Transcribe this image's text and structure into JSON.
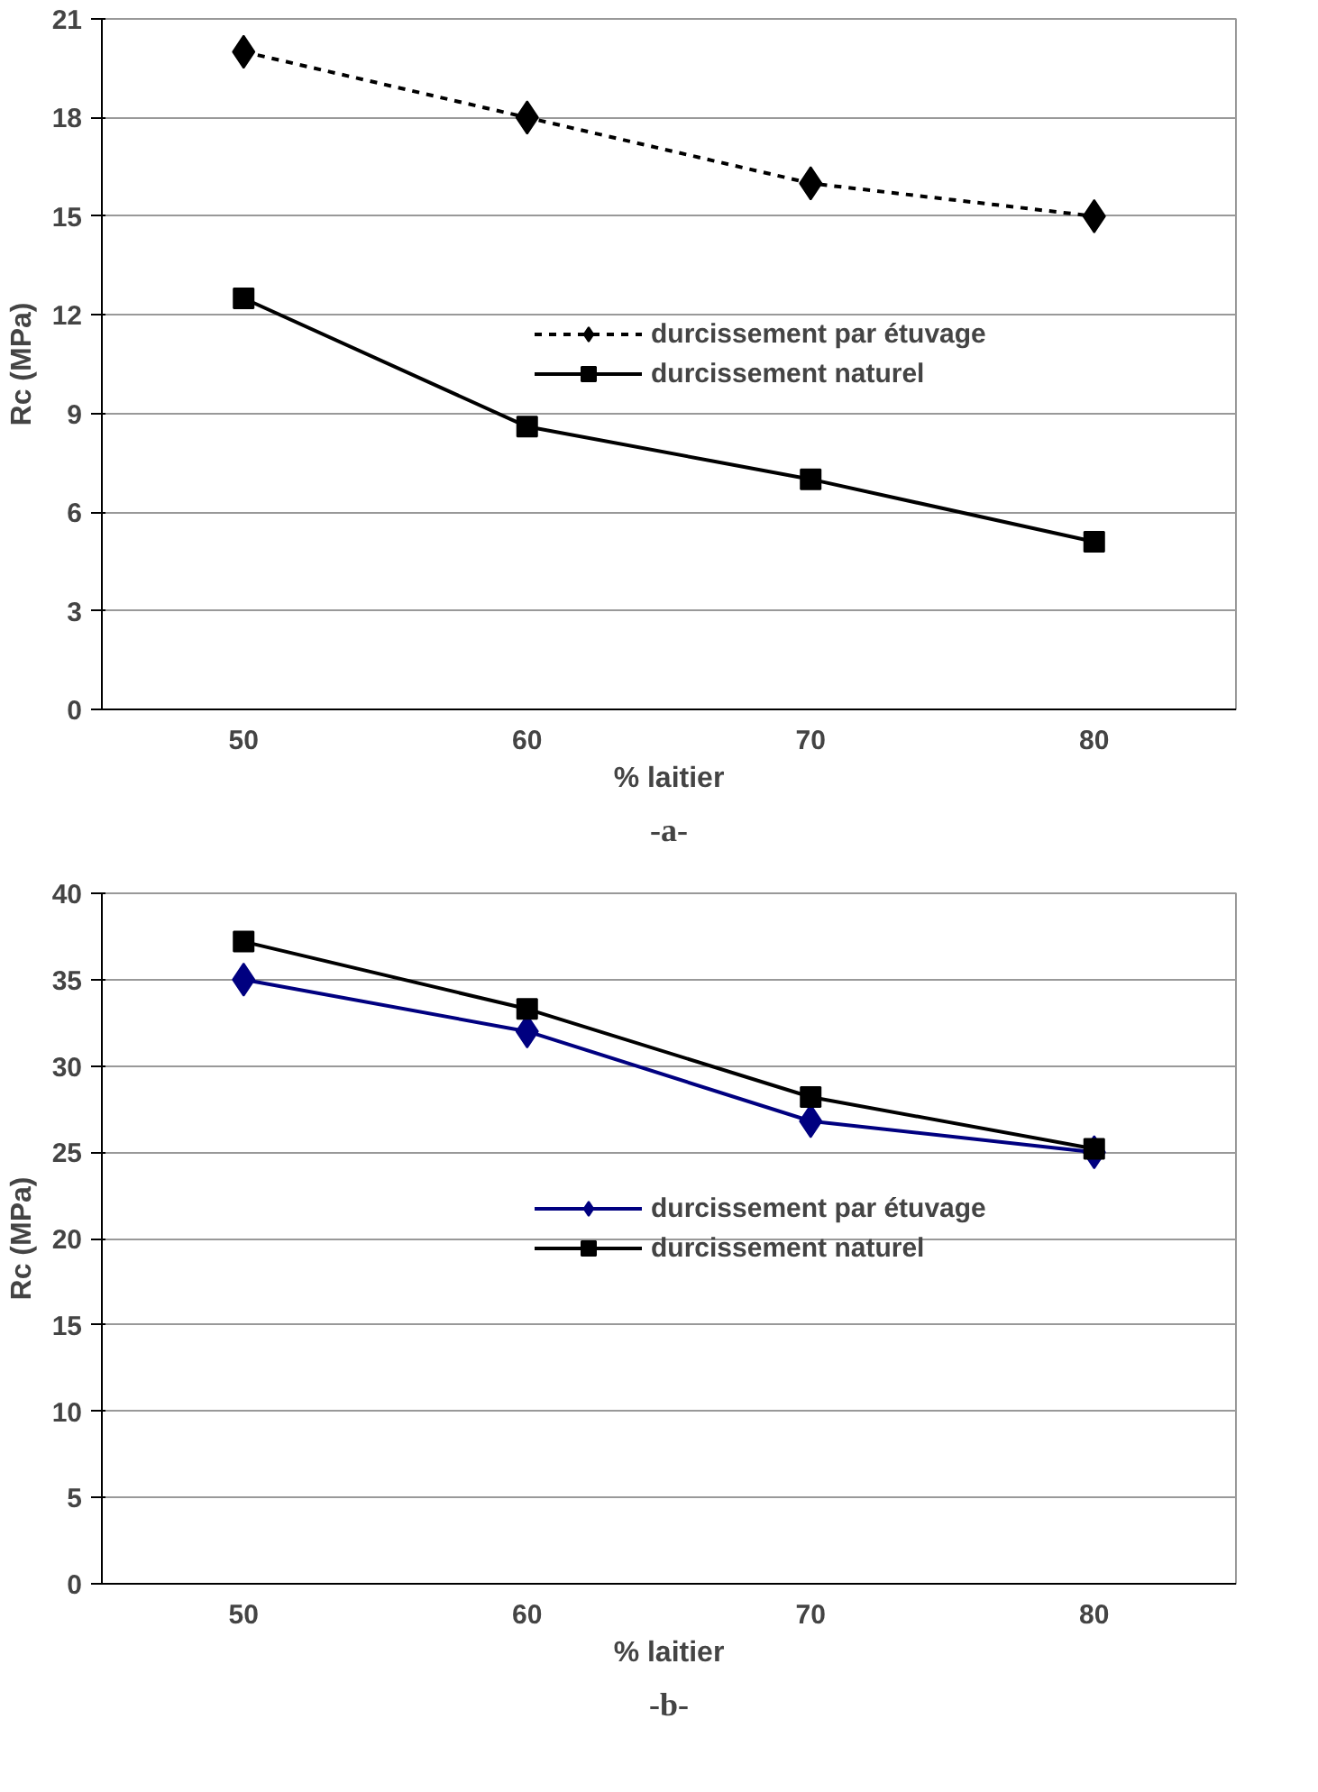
{
  "chart_data": [
    {
      "type": "line",
      "xlabel": "% laitier",
      "ylabel": "Rc (MPa)",
      "categories": [
        "50",
        "60",
        "70",
        "80"
      ],
      "ylim": [
        0,
        21
      ],
      "yticks": [
        0,
        3,
        6,
        9,
        12,
        15,
        18,
        21
      ],
      "grid": "y",
      "legend": "center",
      "annotations": [
        "-a-"
      ],
      "series": [
        {
          "name": "durcissement par étuvage",
          "color": "#000000",
          "marker": "diamond",
          "line_style": "dotted",
          "values": [
            20,
            18,
            16,
            15
          ]
        },
        {
          "name": "durcissement naturel",
          "color": "#000000",
          "marker": "square",
          "line_style": "solid",
          "values": [
            12.5,
            8.6,
            7,
            5.1
          ]
        }
      ]
    },
    {
      "type": "line",
      "xlabel": "% laitier",
      "ylabel": "Rc (MPa)",
      "categories": [
        "50",
        "60",
        "70",
        "80"
      ],
      "ylim": [
        0,
        40
      ],
      "yticks": [
        0,
        5,
        10,
        15,
        20,
        25,
        30,
        35,
        40
      ],
      "grid": "y",
      "legend": "center",
      "annotations": [
        "-b-"
      ],
      "series": [
        {
          "name": "durcissement par étuvage",
          "color": "#000080",
          "marker": "diamond",
          "line_style": "solid",
          "values": [
            35,
            32,
            26.8,
            25
          ]
        },
        {
          "name": "durcissement naturel",
          "color": "#000000",
          "marker": "square",
          "line_style": "solid",
          "values": [
            37.2,
            33.3,
            28.2,
            25.2
          ]
        }
      ]
    }
  ]
}
